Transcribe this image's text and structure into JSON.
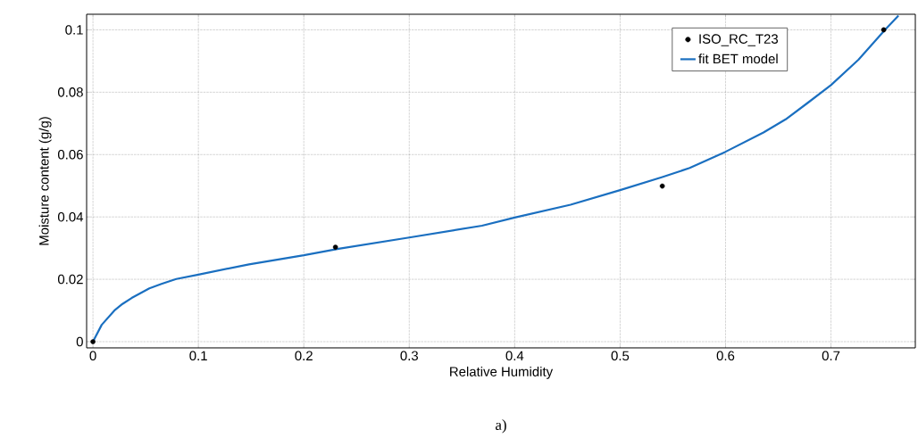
{
  "chart_data": {
    "type": "scatter",
    "xlabel": "Relative Humidity",
    "ylabel": "Moisture content (g/g)",
    "xlim": [
      -0.006,
      0.78
    ],
    "ylim": [
      -0.002,
      0.105
    ],
    "xticks": [
      0,
      0.1,
      0.2,
      0.3,
      0.4,
      0.5,
      0.6,
      0.7
    ],
    "yticks": [
      0,
      0.02,
      0.04,
      0.06,
      0.08,
      0.1
    ],
    "grid": true,
    "legend": "top right",
    "series": [
      {
        "name": "ISO_RC_T23",
        "marker": "circle",
        "color": "#000000",
        "x": [
          0,
          0.23,
          0.54,
          0.75
        ],
        "values": [
          0,
          0.0303,
          0.0499,
          0.1
        ]
      },
      {
        "name": "fit BET model",
        "type": "line",
        "marker": "none",
        "line_style": "solid",
        "color": "#1a6fc0",
        "x": [
          0,
          0.0083,
          0.021,
          0.028,
          0.0367,
          0.0535,
          0.065,
          0.079,
          0.1,
          0.148,
          0.2,
          0.233,
          0.3,
          0.369,
          0.4,
          0.453,
          0.5,
          0.54,
          0.566,
          0.6,
          0.636,
          0.657,
          0.678,
          0.7,
          0.726,
          0.751,
          0.764
        ],
        "values": [
          0,
          0.0054,
          0.0102,
          0.0121,
          0.014,
          0.0171,
          0.0185,
          0.0201,
          0.0215,
          0.0248,
          0.0277,
          0.0298,
          0.0334,
          0.0372,
          0.0398,
          0.0439,
          0.0486,
          0.0528,
          0.0557,
          0.0609,
          0.0671,
          0.0713,
          0.0766,
          0.0823,
          0.0904,
          0.0999,
          0.1046
        ]
      }
    ],
    "annotations": [
      "a)"
    ]
  }
}
